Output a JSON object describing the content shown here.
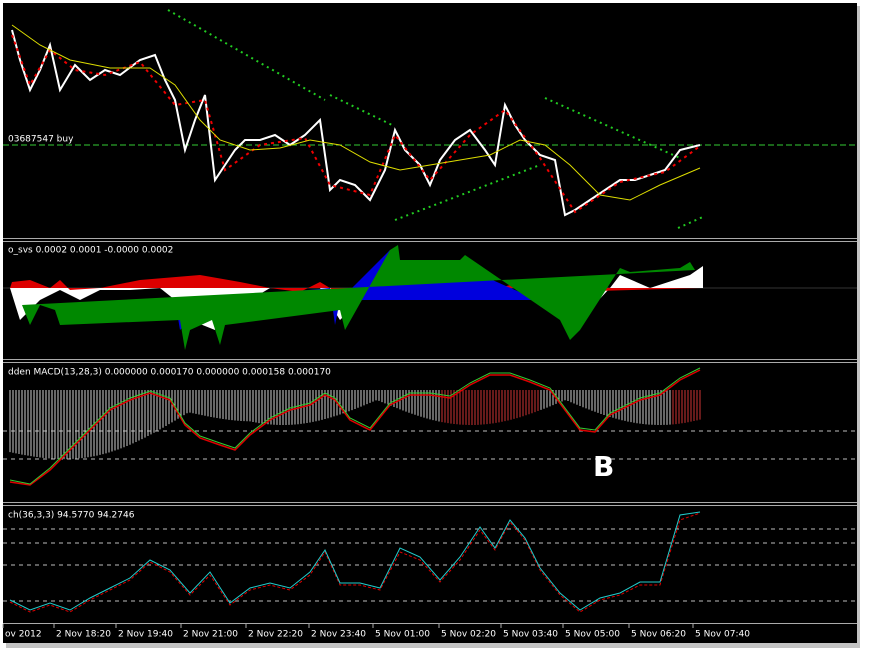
{
  "price_panel": {
    "order_label": "03687547 buy"
  },
  "svs_panel": {
    "label": "o_svs 0.0002 0.0001 -0.0000 0.0002"
  },
  "macd_panel": {
    "label": "dden MACD(13,28,3) 0.000000 0.000170 0.000000 0.000158 0.000170",
    "annotation": "B"
  },
  "stoch_panel": {
    "label": "ch(36,3,3) 94.5770 94.2746"
  },
  "time_axis": {
    "labels": [
      "ov 2012",
      "2 Nov 18:20",
      "2 Nov 19:40",
      "2 Nov 21:00",
      "2 Nov 22:20",
      "2 Nov 23:40",
      "5 Nov 01:00",
      "5 Nov 02:20",
      "5 Nov 03:40",
      "5 Nov 05:00",
      "5 Nov 06:20",
      "5 Nov 07:40"
    ]
  }
}
